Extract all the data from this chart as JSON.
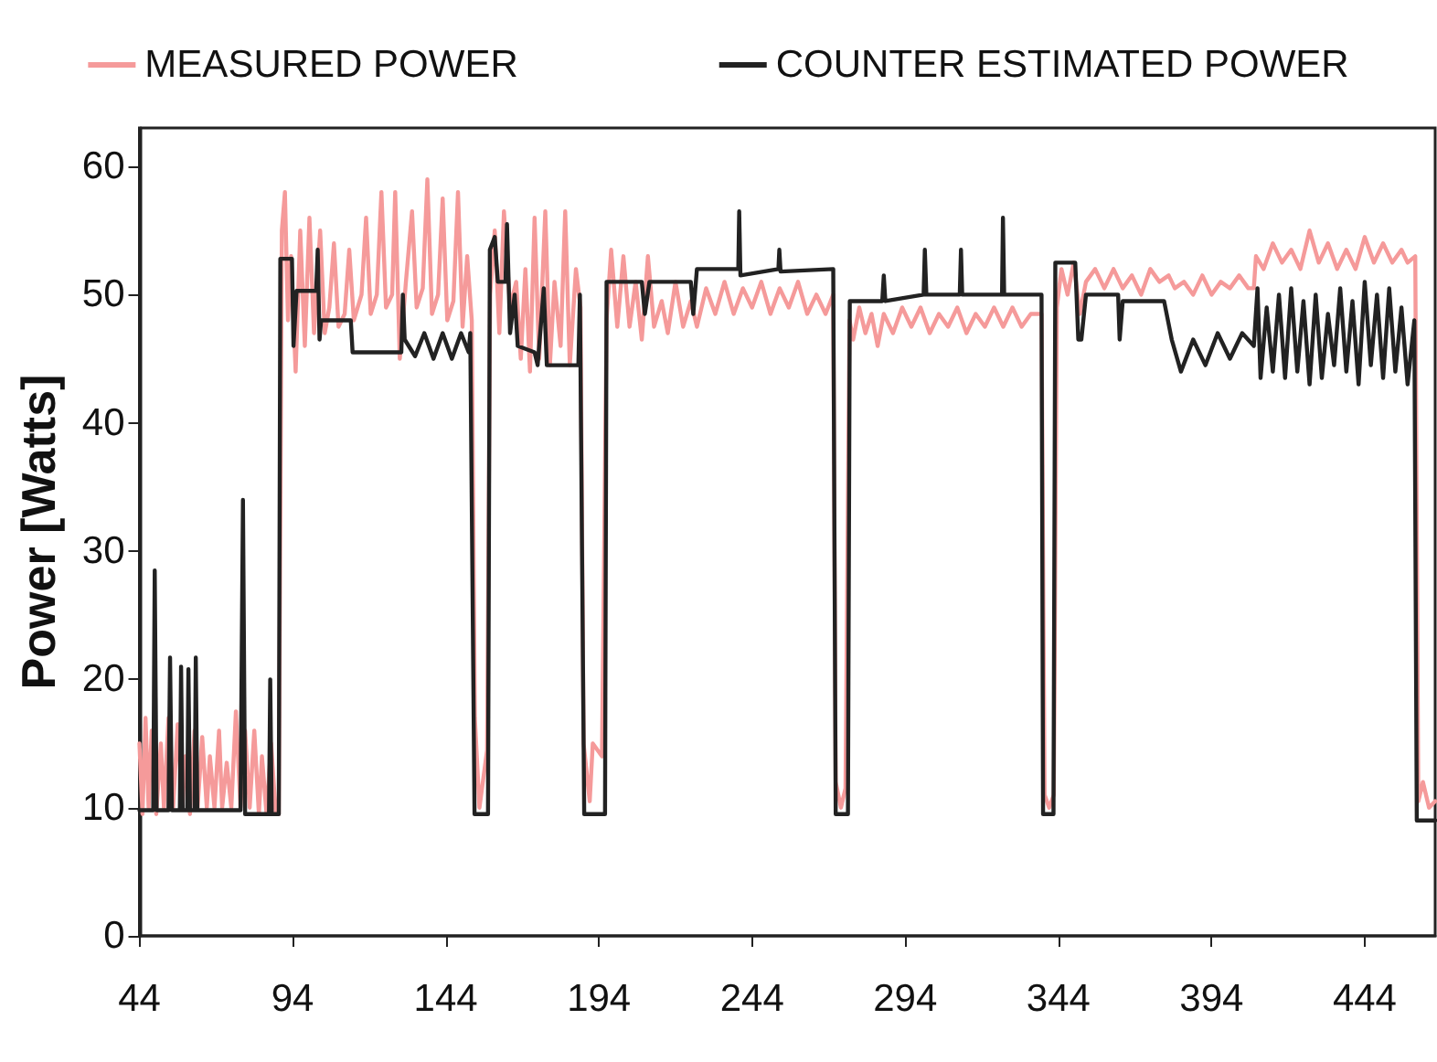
{
  "chart_data": {
    "type": "line",
    "ylabel": "Power [Watts]",
    "xlim": [
      44,
      467
    ],
    "xticks": [
      44,
      94,
      144,
      194,
      244,
      294,
      344,
      394,
      444
    ],
    "ylim": [
      0,
      63
    ],
    "yticks": [
      0,
      10,
      20,
      30,
      40,
      50,
      60
    ],
    "grid": false,
    "legend": "top",
    "marker": "none",
    "series": [
      {
        "name": "MEASURED POWER",
        "color": "#f59a9a",
        "x": [
          44,
          45,
          46,
          47,
          48,
          49.5,
          51,
          52,
          53.5,
          55,
          56.5,
          58,
          59,
          60.5,
          62,
          63,
          64.5,
          66,
          67,
          68.5,
          70,
          71,
          72.5,
          74,
          75.5,
          77,
          78.5,
          80,
          81.5,
          83,
          84,
          85.5,
          87,
          88.5,
          89.5,
          90.5,
          91.5,
          92.5,
          93.5,
          95,
          96.5,
          98,
          99.5,
          101,
          103,
          104.5,
          106,
          107.5,
          109,
          111,
          112.5,
          114,
          116.5,
          118,
          119.5,
          121.5,
          123,
          124.5,
          126.5,
          127.5,
          129,
          131,
          133,
          134.5,
          136.5,
          138,
          139.5,
          141.5,
          143,
          144.5,
          146.5,
          148,
          149.5,
          151,
          152.5,
          153.5,
          155,
          157.5,
          158.5,
          160,
          161.5,
          163,
          165,
          167,
          168.5,
          170,
          171.5,
          173,
          174.5,
          176.5,
          178,
          179.5,
          181.5,
          183,
          184.5,
          186.5,
          188,
          189,
          191,
          192,
          195,
          196.5,
          198,
          200,
          202,
          204,
          206,
          208,
          210,
          212,
          214.5,
          216.5,
          219,
          221.5,
          224,
          226,
          229,
          232,
          235,
          238,
          241,
          244,
          247,
          250,
          253,
          256,
          259,
          262,
          265,
          268,
          270.5,
          271.3,
          273,
          274.5,
          275.8,
          277,
          279,
          281,
          283,
          285,
          287,
          290,
          293,
          296,
          299,
          302,
          305,
          308,
          311,
          314,
          317,
          320,
          323,
          326,
          329,
          332,
          335,
          338.5,
          339.5,
          341,
          342.5,
          343.5,
          345,
          347,
          349,
          351,
          353,
          356,
          359,
          362,
          365,
          368,
          371,
          374,
          377,
          380,
          382,
          385,
          388,
          391,
          394,
          397,
          400,
          403,
          406,
          407.8,
          408.5,
          411,
          414,
          417,
          420,
          423,
          426,
          429,
          432,
          435,
          438,
          441,
          444,
          447,
          450,
          453,
          456,
          458,
          460.5,
          461.5,
          463,
          465,
          467
        ],
        "values": [
          15,
          9.5,
          17,
          10,
          16,
          9.5,
          15,
          10,
          17,
          10,
          16.5,
          10,
          14,
          9.5,
          16,
          10,
          15.5,
          10,
          14,
          10,
          16,
          10,
          13.5,
          10,
          17.5,
          10,
          16,
          10,
          16,
          9.5,
          14,
          9.5,
          15,
          9.5,
          9.5,
          55,
          58,
          48,
          53,
          44,
          55,
          46,
          56,
          47,
          55,
          47,
          49,
          54,
          47.5,
          48.5,
          53.5,
          48,
          50,
          56,
          48.5,
          50,
          58,
          49,
          50,
          58,
          45,
          51,
          56.5,
          49,
          50.5,
          59,
          48.5,
          50,
          57.5,
          48,
          49.5,
          58,
          47.5,
          53,
          48,
          17,
          10,
          14.5,
          50,
          55,
          47,
          56.5,
          49,
          51,
          45,
          52,
          44,
          56,
          45,
          56.5,
          44.5,
          51,
          46,
          56.5,
          44.5,
          52,
          49,
          15,
          10.5,
          15,
          14,
          48,
          53.5,
          47.5,
          53,
          47.5,
          51,
          46.5,
          53,
          47.5,
          49.5,
          47,
          51,
          47.5,
          49.5,
          47.5,
          50.5,
          48.5,
          51,
          48.5,
          50.5,
          49,
          51,
          48.5,
          50.5,
          49,
          51,
          48.5,
          50,
          48.5,
          50,
          12,
          10,
          11.5,
          48,
          46.5,
          49,
          47,
          48.5,
          46,
          48.5,
          47,
          49,
          47.5,
          49,
          47,
          48.5,
          47.5,
          49,
          47,
          48.5,
          47.5,
          49,
          47.5,
          49,
          47.5,
          48.5,
          48.5,
          11,
          10,
          11,
          49,
          52,
          50,
          52.5,
          48.5,
          51,
          52,
          50.5,
          52,
          50.5,
          51.5,
          50,
          52,
          51,
          51.5,
          50.5,
          51,
          50,
          51.5,
          50,
          51,
          50.5,
          51.5,
          50.5,
          50.5,
          53,
          52,
          54,
          52.5,
          53.5,
          52,
          55,
          52.5,
          54,
          52,
          53.5,
          52,
          54.5,
          52.5,
          54,
          52.5,
          53.5,
          52.5,
          53,
          10.5,
          12,
          10,
          10.5
        ]
      },
      {
        "name": "COUNTER ESTIMATED POWER",
        "color": "#222222",
        "x": [
          44,
          48.5,
          49,
          49.6,
          53.5,
          54,
          54.6,
          57.2,
          57.6,
          58.1,
          59.6,
          60,
          60.5,
          62,
          62.4,
          62.9,
          77,
          77.8,
          78.5,
          86.3,
          86.7,
          87.2,
          89.5,
          90,
          93.8,
          94.3,
          95.3,
          101.7,
          102.2,
          102.8,
          103.3,
          113,
          113.6,
          129.5,
          130,
          130.6,
          134,
          137,
          140,
          143,
          146,
          149,
          151.5,
          152,
          153.4,
          157.8,
          158.4,
          160,
          161,
          163.5,
          164,
          165,
          166.5,
          167.5,
          173,
          174,
          176,
          177,
          187.3,
          187.8,
          189.2,
          196,
          196.5,
          208,
          209,
          210.5,
          224,
          224.8,
          226,
          239.5,
          239.8,
          240.2,
          252.6,
          252.9,
          253.3,
          270.5,
          271.3,
          275.3,
          275.9,
          286.5,
          287,
          287.5,
          300,
          300.4,
          300.9,
          311.8,
          312.2,
          312.6,
          325.6,
          325.9,
          326.3,
          338.5,
          339,
          342.4,
          343,
          349.5,
          350.5,
          351.5,
          353,
          363.5,
          364,
          365,
          378.5,
          381,
          384,
          388,
          392,
          396,
          400,
          404,
          407.8,
          409,
          410,
          412,
          414,
          416,
          418,
          420,
          422,
          424,
          426,
          428,
          430,
          432,
          434,
          436,
          438,
          440,
          442,
          444,
          446,
          448,
          450,
          452,
          454,
          456,
          458,
          460.2,
          461,
          467
        ],
        "values": [
          9.8,
          9.8,
          28.5,
          9.8,
          9.8,
          21.7,
          9.8,
          9.8,
          21,
          9.8,
          9.8,
          20.8,
          9.8,
          9.8,
          21.7,
          9.8,
          9.8,
          34,
          9.5,
          9.5,
          20,
          9.5,
          9.5,
          52.8,
          52.8,
          46,
          50.3,
          50.3,
          53.5,
          46.5,
          48,
          48,
          45.5,
          45.5,
          50,
          46.5,
          45.2,
          47,
          45,
          47,
          45,
          47,
          45.5,
          47,
          9.5,
          9.5,
          53.5,
          54.5,
          51,
          51,
          55.5,
          47,
          50,
          46,
          45.5,
          44.5,
          50.5,
          44.5,
          44.5,
          50,
          9.5,
          9.5,
          51,
          51,
          48.5,
          51,
          51,
          48.5,
          52,
          52,
          56.5,
          51.5,
          52,
          53.5,
          51.8,
          52,
          9.5,
          9.5,
          49.5,
          49.5,
          51.5,
          49.5,
          50,
          53.5,
          50,
          50,
          53.5,
          50,
          50,
          56,
          50,
          50,
          9.5,
          9.5,
          52.5,
          52.5,
          46.5,
          46.5,
          50,
          50,
          46.5,
          49.5,
          49.5,
          46.5,
          44,
          46.5,
          44.5,
          47,
          45,
          47,
          46,
          50.5,
          43.5,
          49,
          44,
          50,
          43.5,
          50.5,
          44,
          49.5,
          43,
          50,
          43.5,
          48.5,
          44.5,
          50.5,
          44,
          49.5,
          43,
          51,
          44.5,
          50,
          43.5,
          50.5,
          44,
          49,
          43,
          48,
          9,
          9
        ]
      }
    ]
  }
}
